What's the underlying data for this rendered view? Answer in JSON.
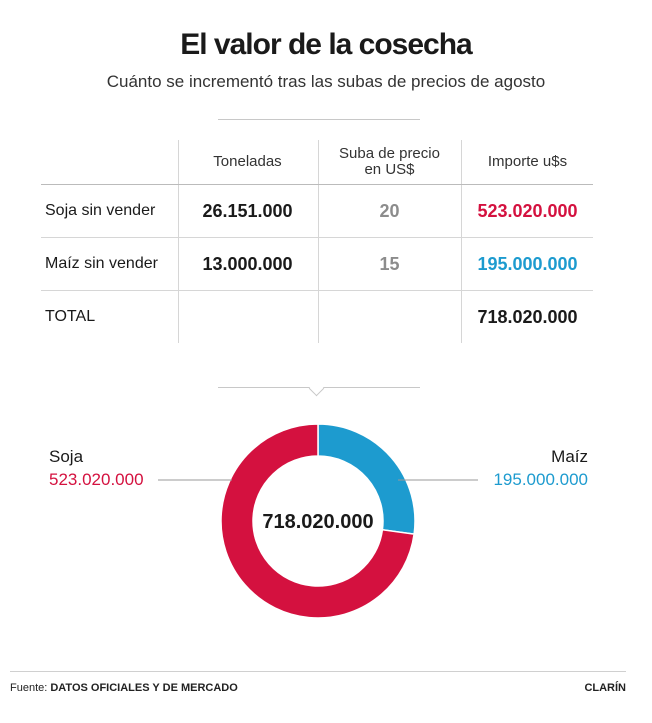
{
  "title": "El valor de la cosecha",
  "subtitle": "Cuánto se incrementó tras las subas de precios de agosto",
  "table": {
    "headers": [
      "",
      "Toneladas",
      "Suba de precio\nen US$",
      "Importe u$s"
    ],
    "rows": [
      {
        "label": "Soja sin vender",
        "toneladas": "26.151.000",
        "suba": "20",
        "importe": "523.020.000"
      },
      {
        "label": "Maíz sin vender",
        "toneladas": "13.000.000",
        "suba": "15",
        "importe": "195.000.000"
      }
    ],
    "total": {
      "label": "TOTAL",
      "importe": "718.020.000"
    }
  },
  "chart_data": {
    "type": "pie",
    "donut": true,
    "center_label": "718.020.000",
    "series": [
      {
        "name": "Soja",
        "value": 523020000,
        "label": "523.020.000",
        "color": "#d4113f"
      },
      {
        "name": "Maíz",
        "value": 195000000,
        "label": "195.000.000",
        "color": "#1d9bcf"
      }
    ]
  },
  "footer": {
    "source_prefix": "Fuente: ",
    "source": "DATOS OFICIALES Y DE MERCADO",
    "brand": "CLARÍN"
  }
}
